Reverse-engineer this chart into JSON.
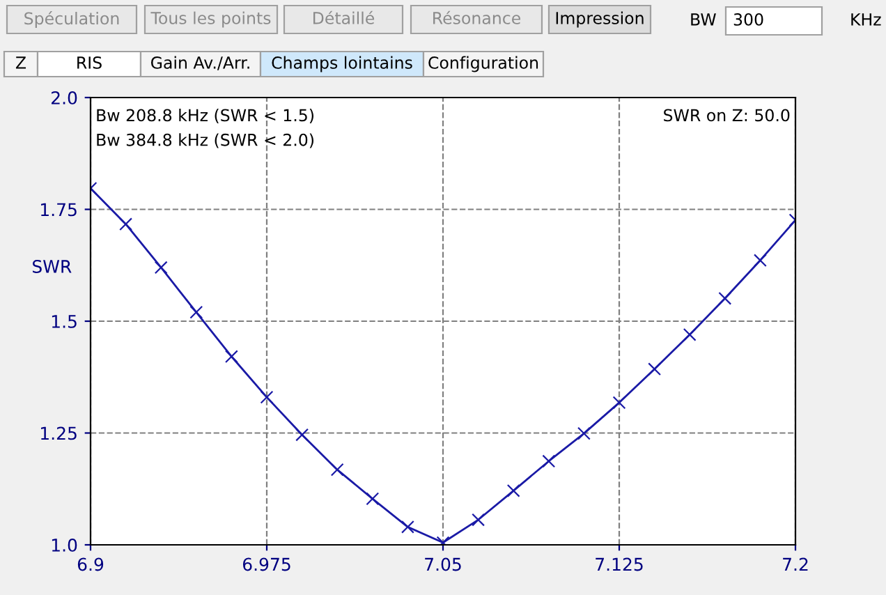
{
  "chart_data": {
    "type": "line",
    "ylabel": "SWR",
    "x": [
      6.9,
      6.915,
      6.93,
      6.945,
      6.96,
      6.975,
      6.99,
      7.005,
      7.02,
      7.035,
      7.05,
      7.065,
      7.08,
      7.095,
      7.11,
      7.125,
      7.14,
      7.155,
      7.17,
      7.185,
      7.2
    ],
    "series": [
      {
        "color": "#1a1aa6",
        "values": [
          1.797,
          1.717,
          1.62,
          1.52,
          1.421,
          1.33,
          1.246,
          1.168,
          1.103,
          1.04,
          1.005,
          1.056,
          1.121,
          1.187,
          1.249,
          1.318,
          1.393,
          1.47,
          1.551,
          1.636,
          1.726
        ]
      }
    ],
    "xlim": [
      6.9,
      7.2
    ],
    "xticks": [
      6.9,
      6.975,
      7.05,
      7.125,
      7.2
    ],
    "ylim": [
      1.0,
      2.0
    ],
    "yticks": [
      {
        "value": 1.0,
        "label": "1.0"
      },
      1.25,
      1.5,
      1.75,
      {
        "value": 2.0,
        "label": "2.0"
      }
    ],
    "grid": true,
    "marker": "cross",
    "line_style": "solid",
    "legend": false,
    "annotations": [
      "Bw 208.8 kHz (SWR < 1.5)",
      "Bw 384.8 kHz (SWR < 2.0)",
      "SWR on Z: 50.0",
      "Spéculation",
      "Tous les points",
      "Détaillé",
      "Résonance",
      "Impression",
      "BW",
      "300",
      "KHz",
      "Z",
      "RIS",
      "Gain Av./Arr.",
      "Champs lointains",
      "Configuration"
    ]
  }
}
